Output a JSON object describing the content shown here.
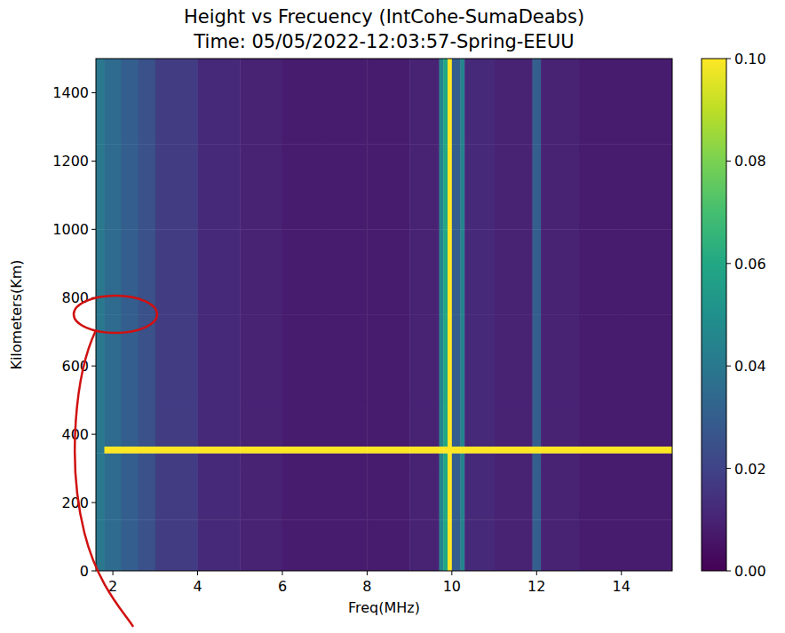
{
  "chart_data": {
    "type": "heatmap",
    "title": "Height vs Frecuency (IntCohe-SumaDeabs)",
    "subtitle": "Time: 05/05/2022-12:03:57-Spring-EEUU",
    "x_label": "Freq(MHz)",
    "y_label": "Kilometers(Km)",
    "xlim": [
      1.6,
      15.2
    ],
    "ylim": [
      0,
      1500
    ],
    "xticks": [
      2,
      4,
      6,
      8,
      10,
      12,
      14
    ],
    "yticks": [
      0,
      200,
      400,
      600,
      800,
      1000,
      1200,
      1400
    ],
    "x_edges": [
      1.6,
      1.8,
      2.2,
      2.6,
      3,
      4,
      5,
      6,
      7,
      8,
      9,
      9.7,
      9.8,
      9.9,
      10,
      10.2,
      10.3,
      11,
      11.9,
      12.1,
      13,
      14,
      15.2
    ],
    "y_edges": [
      0,
      150,
      300,
      345,
      365,
      500,
      750,
      1000,
      1250,
      1500
    ],
    "cells": [
      [
        0.04,
        0.035,
        0.03,
        0.025,
        0.018,
        0.012,
        0.01,
        0.008,
        0.008,
        0.008,
        0.01,
        0.045,
        0.06,
        0.1,
        0.03,
        0.045,
        0.012,
        0.01,
        0.03,
        0.01,
        0.008,
        0.008
      ],
      [
        0.04,
        0.035,
        0.03,
        0.025,
        0.018,
        0.012,
        0.01,
        0.008,
        0.008,
        0.008,
        0.01,
        0.045,
        0.06,
        0.1,
        0.03,
        0.045,
        0.012,
        0.01,
        0.03,
        0.01,
        0.008,
        0.008
      ],
      [
        0.04,
        0.035,
        0.03,
        0.025,
        0.018,
        0.012,
        0.01,
        0.008,
        0.008,
        0.008,
        0.01,
        0.045,
        0.06,
        0.1,
        0.03,
        0.045,
        0.012,
        0.01,
        0.03,
        0.01,
        0.008,
        0.008
      ],
      [
        0.04,
        0.1,
        0.1,
        0.1,
        0.1,
        0.1,
        0.1,
        0.1,
        0.1,
        0.1,
        0.1,
        0.1,
        0.1,
        0.1,
        0.1,
        0.1,
        0.1,
        0.1,
        0.1,
        0.1,
        0.1,
        0.1
      ],
      [
        0.04,
        0.035,
        0.03,
        0.025,
        0.018,
        0.012,
        0.01,
        0.008,
        0.008,
        0.008,
        0.01,
        0.045,
        0.06,
        0.1,
        0.03,
        0.045,
        0.012,
        0.01,
        0.03,
        0.01,
        0.008,
        0.008
      ],
      [
        0.04,
        0.035,
        0.03,
        0.025,
        0.018,
        0.012,
        0.01,
        0.008,
        0.008,
        0.008,
        0.01,
        0.045,
        0.06,
        0.1,
        0.03,
        0.045,
        0.012,
        0.01,
        0.03,
        0.01,
        0.008,
        0.008
      ],
      [
        0.04,
        0.035,
        0.03,
        0.025,
        0.018,
        0.012,
        0.01,
        0.008,
        0.008,
        0.008,
        0.01,
        0.045,
        0.06,
        0.1,
        0.03,
        0.045,
        0.012,
        0.01,
        0.03,
        0.01,
        0.008,
        0.008
      ],
      [
        0.04,
        0.035,
        0.03,
        0.025,
        0.018,
        0.012,
        0.01,
        0.008,
        0.008,
        0.008,
        0.01,
        0.045,
        0.06,
        0.1,
        0.03,
        0.045,
        0.012,
        0.01,
        0.03,
        0.01,
        0.008,
        0.008
      ],
      [
        0.04,
        0.035,
        0.03,
        0.025,
        0.018,
        0.012,
        0.01,
        0.008,
        0.008,
        0.008,
        0.01,
        0.045,
        0.06,
        0.1,
        0.03,
        0.045,
        0.012,
        0.01,
        0.03,
        0.01,
        0.008,
        0.008
      ]
    ],
    "colorbar_range": [
      0,
      0.1
    ],
    "colorbar_ticks": [
      {
        "value": 0,
        "label": "0.00"
      },
      {
        "value": 0.02,
        "label": "0.02"
      },
      {
        "value": 0.04,
        "label": "0.04"
      },
      {
        "value": 0.06,
        "label": "0.06"
      },
      {
        "value": 0.08,
        "label": "0.08"
      },
      {
        "value": 0.1,
        "label": "0.10"
      }
    ]
  }
}
